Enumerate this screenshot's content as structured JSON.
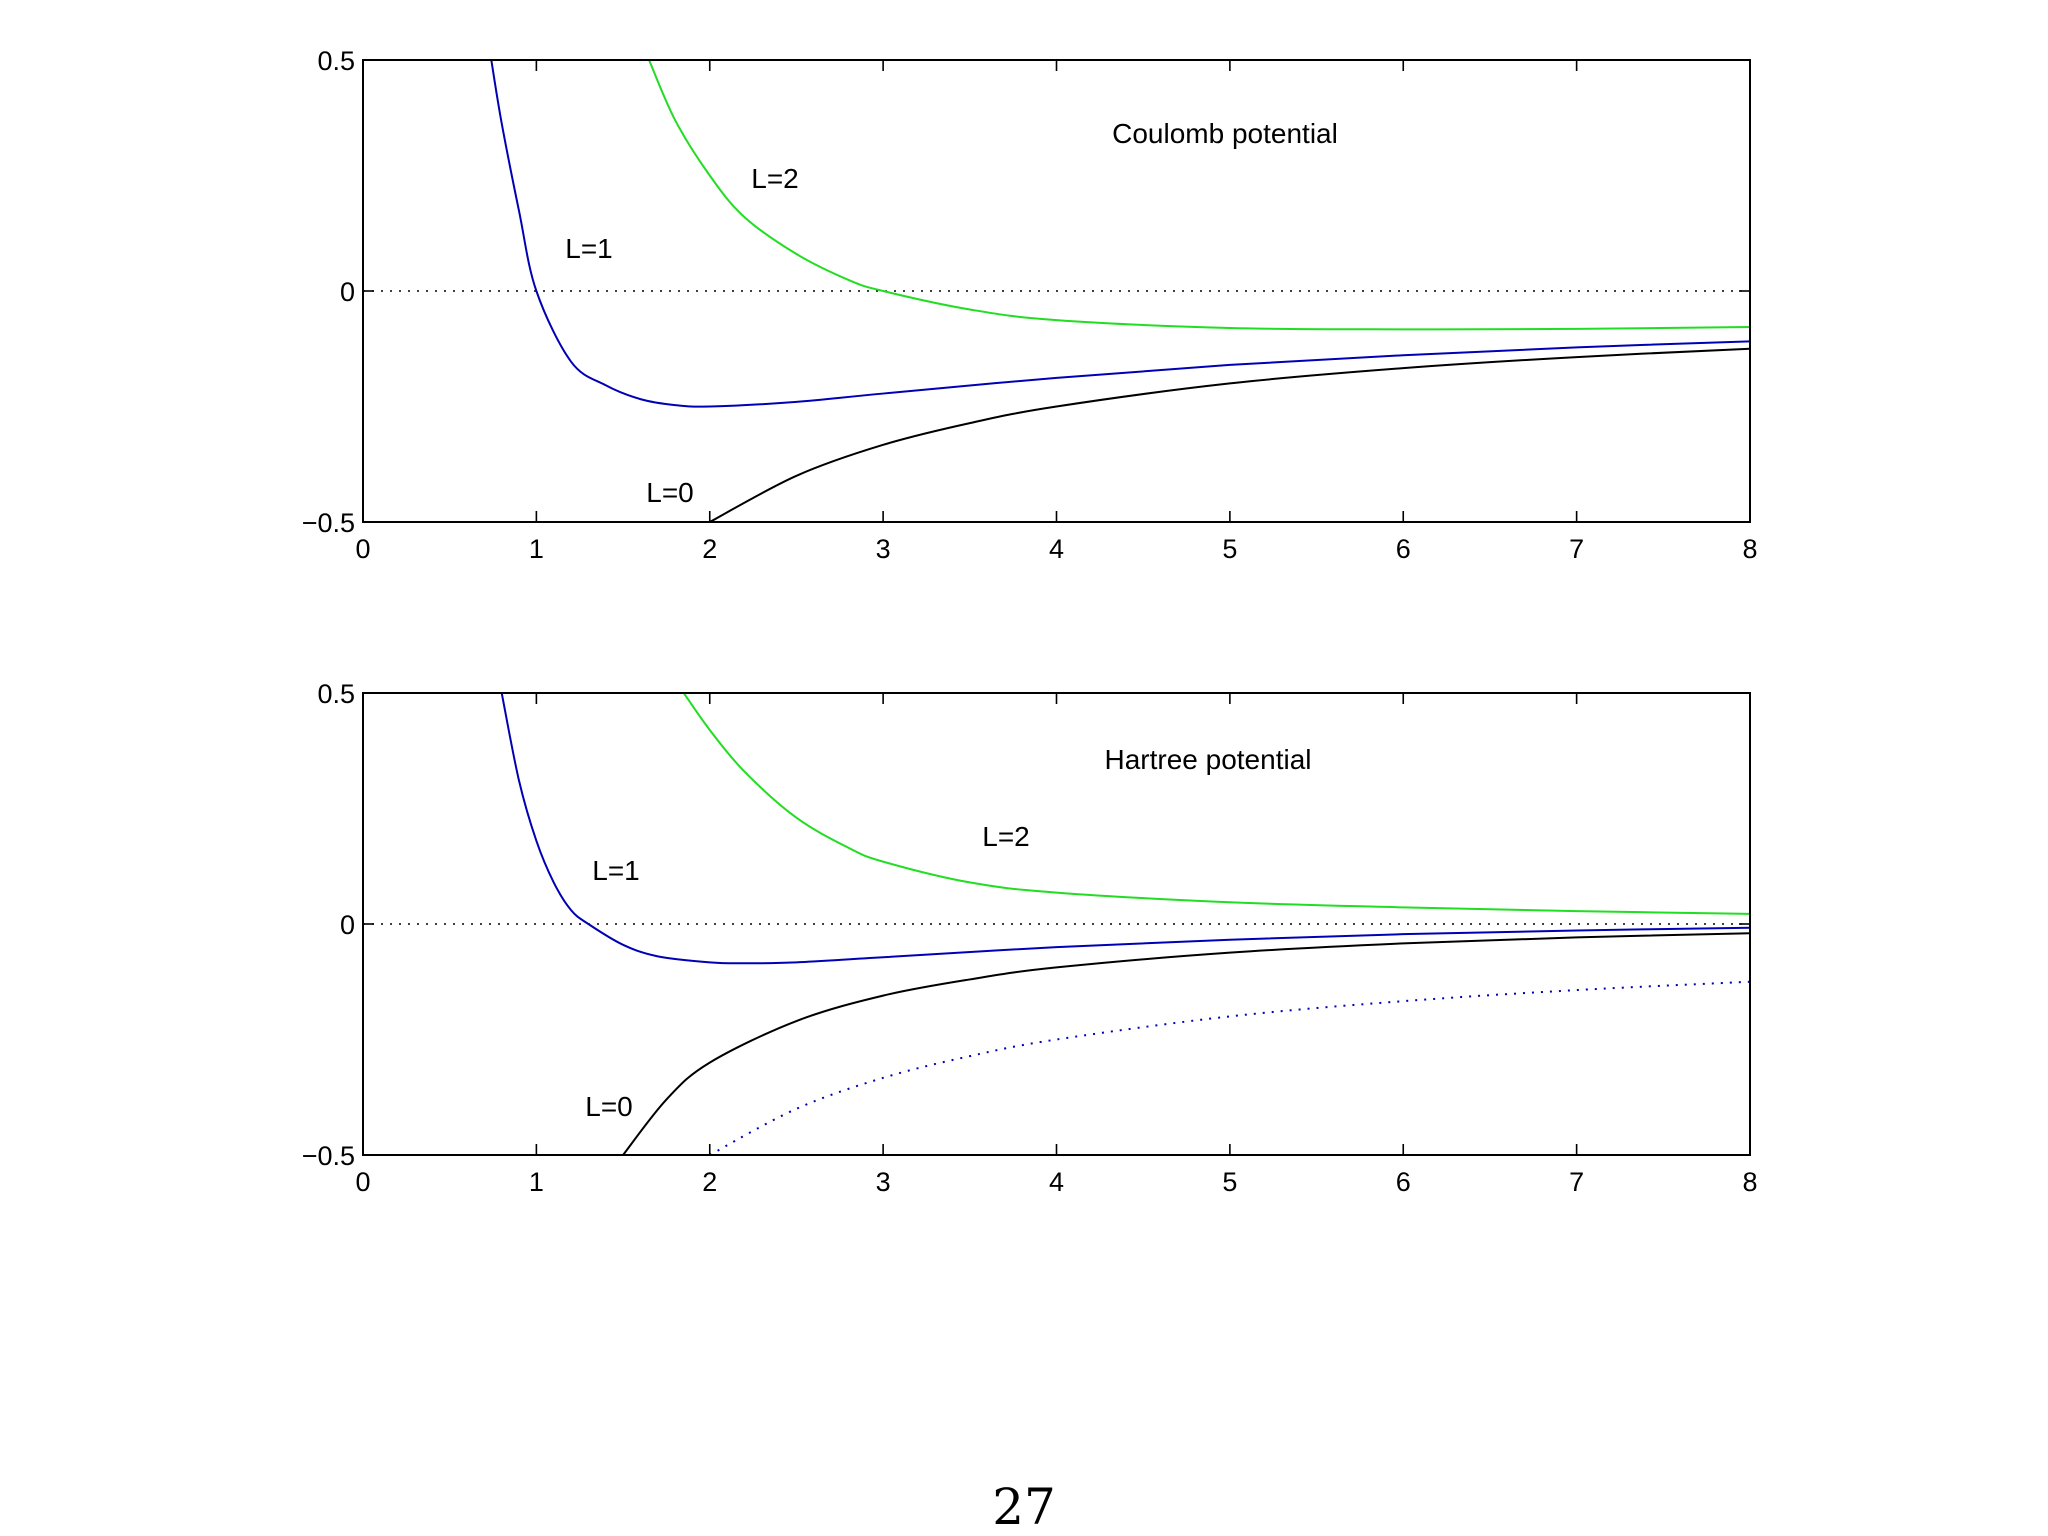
{
  "chart_data": [
    {
      "type": "line",
      "title": "Coulomb potential",
      "xlabel": "",
      "ylabel": "",
      "xlim": [
        0,
        8
      ],
      "ylim": [
        -0.5,
        0.5
      ],
      "x_ticks": [
        "0",
        "1",
        "2",
        "3",
        "4",
        "5",
        "6",
        "7",
        "8"
      ],
      "y_ticks": [
        "−0.5",
        "0",
        "0.5"
      ],
      "zero_line": "dotted",
      "grid": false,
      "series": [
        {
          "label": "L=0",
          "color": "#000000",
          "style": "solid",
          "x": [
            2,
            2.5,
            3,
            3.5,
            4,
            5,
            6,
            7,
            8
          ],
          "y": [
            -0.5,
            -0.4,
            -0.333,
            -0.286,
            -0.25,
            -0.2,
            -0.167,
            -0.143,
            -0.125
          ]
        },
        {
          "label": "L=1",
          "color": "#0000b4",
          "style": "solid",
          "x": [
            0.74,
            0.8,
            0.9,
            1.0,
            1.2,
            1.4,
            1.6,
            1.8,
            2.0,
            2.5,
            3,
            4,
            5,
            6,
            7,
            8
          ],
          "y": [
            0.5,
            0.363,
            0.173,
            0.0,
            -0.153,
            -0.204,
            -0.234,
            -0.247,
            -0.25,
            -0.24,
            -0.222,
            -0.188,
            -0.16,
            -0.139,
            -0.122,
            -0.109
          ]
        },
        {
          "label": "L=2",
          "color": "#22dd22",
          "style": "solid",
          "x": [
            1.65,
            1.8,
            2.0,
            2.2,
            2.5,
            2.8,
            3.0,
            3.5,
            4,
            5,
            6,
            7,
            8
          ],
          "y": [
            0.5,
            0.37,
            0.25,
            0.16,
            0.08,
            0.024,
            0.0,
            -0.04,
            -0.063,
            -0.08,
            -0.083,
            -0.082,
            -0.078
          ]
        }
      ]
    },
    {
      "type": "line",
      "title": "Hartree potential",
      "xlabel": "",
      "ylabel": "",
      "xlim": [
        0,
        8
      ],
      "ylim": [
        -0.5,
        0.5
      ],
      "x_ticks": [
        "0",
        "1",
        "2",
        "3",
        "4",
        "5",
        "6",
        "7",
        "8"
      ],
      "y_ticks": [
        "−0.5",
        "0",
        "0.5"
      ],
      "zero_line": "dotted",
      "grid": false,
      "series": [
        {
          "label": "L=0",
          "color": "#000000",
          "style": "solid",
          "x": [
            1.5,
            1.75,
            2.0,
            2.5,
            3,
            3.5,
            4,
            5,
            6,
            7,
            8
          ],
          "y": [
            -0.5,
            -0.38,
            -0.3,
            -0.21,
            -0.155,
            -0.12,
            -0.094,
            -0.062,
            -0.042,
            -0.029,
            -0.02
          ]
        },
        {
          "label": "",
          "color": "#0000b4",
          "style": "dotted",
          "x": [
            2,
            2.5,
            3,
            3.5,
            4,
            5,
            6,
            7,
            8
          ],
          "y": [
            -0.5,
            -0.4,
            -0.333,
            -0.286,
            -0.25,
            -0.2,
            -0.167,
            -0.143,
            -0.125
          ]
        },
        {
          "label": "L=1",
          "color": "#0000b4",
          "style": "solid",
          "x": [
            0.8,
            0.9,
            1.0,
            1.1,
            1.2,
            1.3,
            1.5,
            1.7,
            2.0,
            2.2,
            2.5,
            3,
            4,
            5,
            6,
            7,
            8
          ],
          "y": [
            0.5,
            0.31,
            0.18,
            0.09,
            0.03,
            0.0,
            -0.045,
            -0.07,
            -0.083,
            -0.085,
            -0.083,
            -0.072,
            -0.05,
            -0.034,
            -0.022,
            -0.014,
            -0.008
          ]
        },
        {
          "label": "L=2",
          "color": "#22dd22",
          "style": "solid",
          "x": [
            1.85,
            2.0,
            2.2,
            2.5,
            2.8,
            3.0,
            3.5,
            4,
            5,
            6,
            7,
            8
          ],
          "y": [
            0.5,
            0.42,
            0.33,
            0.23,
            0.165,
            0.135,
            0.09,
            0.068,
            0.047,
            0.036,
            0.028,
            0.022
          ]
        }
      ]
    }
  ],
  "page_number": "27"
}
